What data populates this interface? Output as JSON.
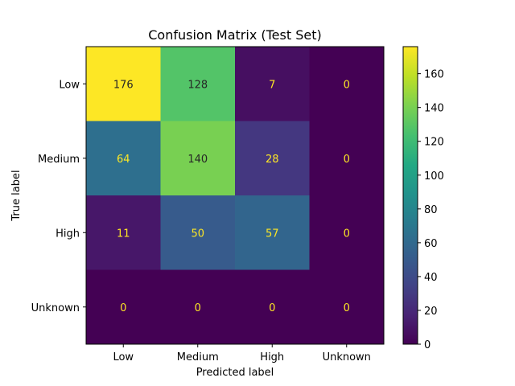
{
  "chart_data": {
    "type": "heatmap",
    "title": "Confusion Matrix (Test Set)",
    "xlabel": "Predicted label",
    "ylabel": "True label",
    "x_categories": [
      "Low",
      "Medium",
      "High",
      "Unknown"
    ],
    "y_categories": [
      "Low",
      "Medium",
      "High",
      "Unknown"
    ],
    "values": [
      [
        176,
        128,
        7,
        0
      ],
      [
        64,
        140,
        28,
        0
      ],
      [
        11,
        50,
        57,
        0
      ],
      [
        0,
        0,
        0,
        0
      ]
    ],
    "colormap": "viridis",
    "colorbar": {
      "min": 0,
      "max": 176,
      "ticks": [
        0,
        20,
        40,
        60,
        80,
        100,
        120,
        140,
        160
      ]
    },
    "grid": false
  }
}
